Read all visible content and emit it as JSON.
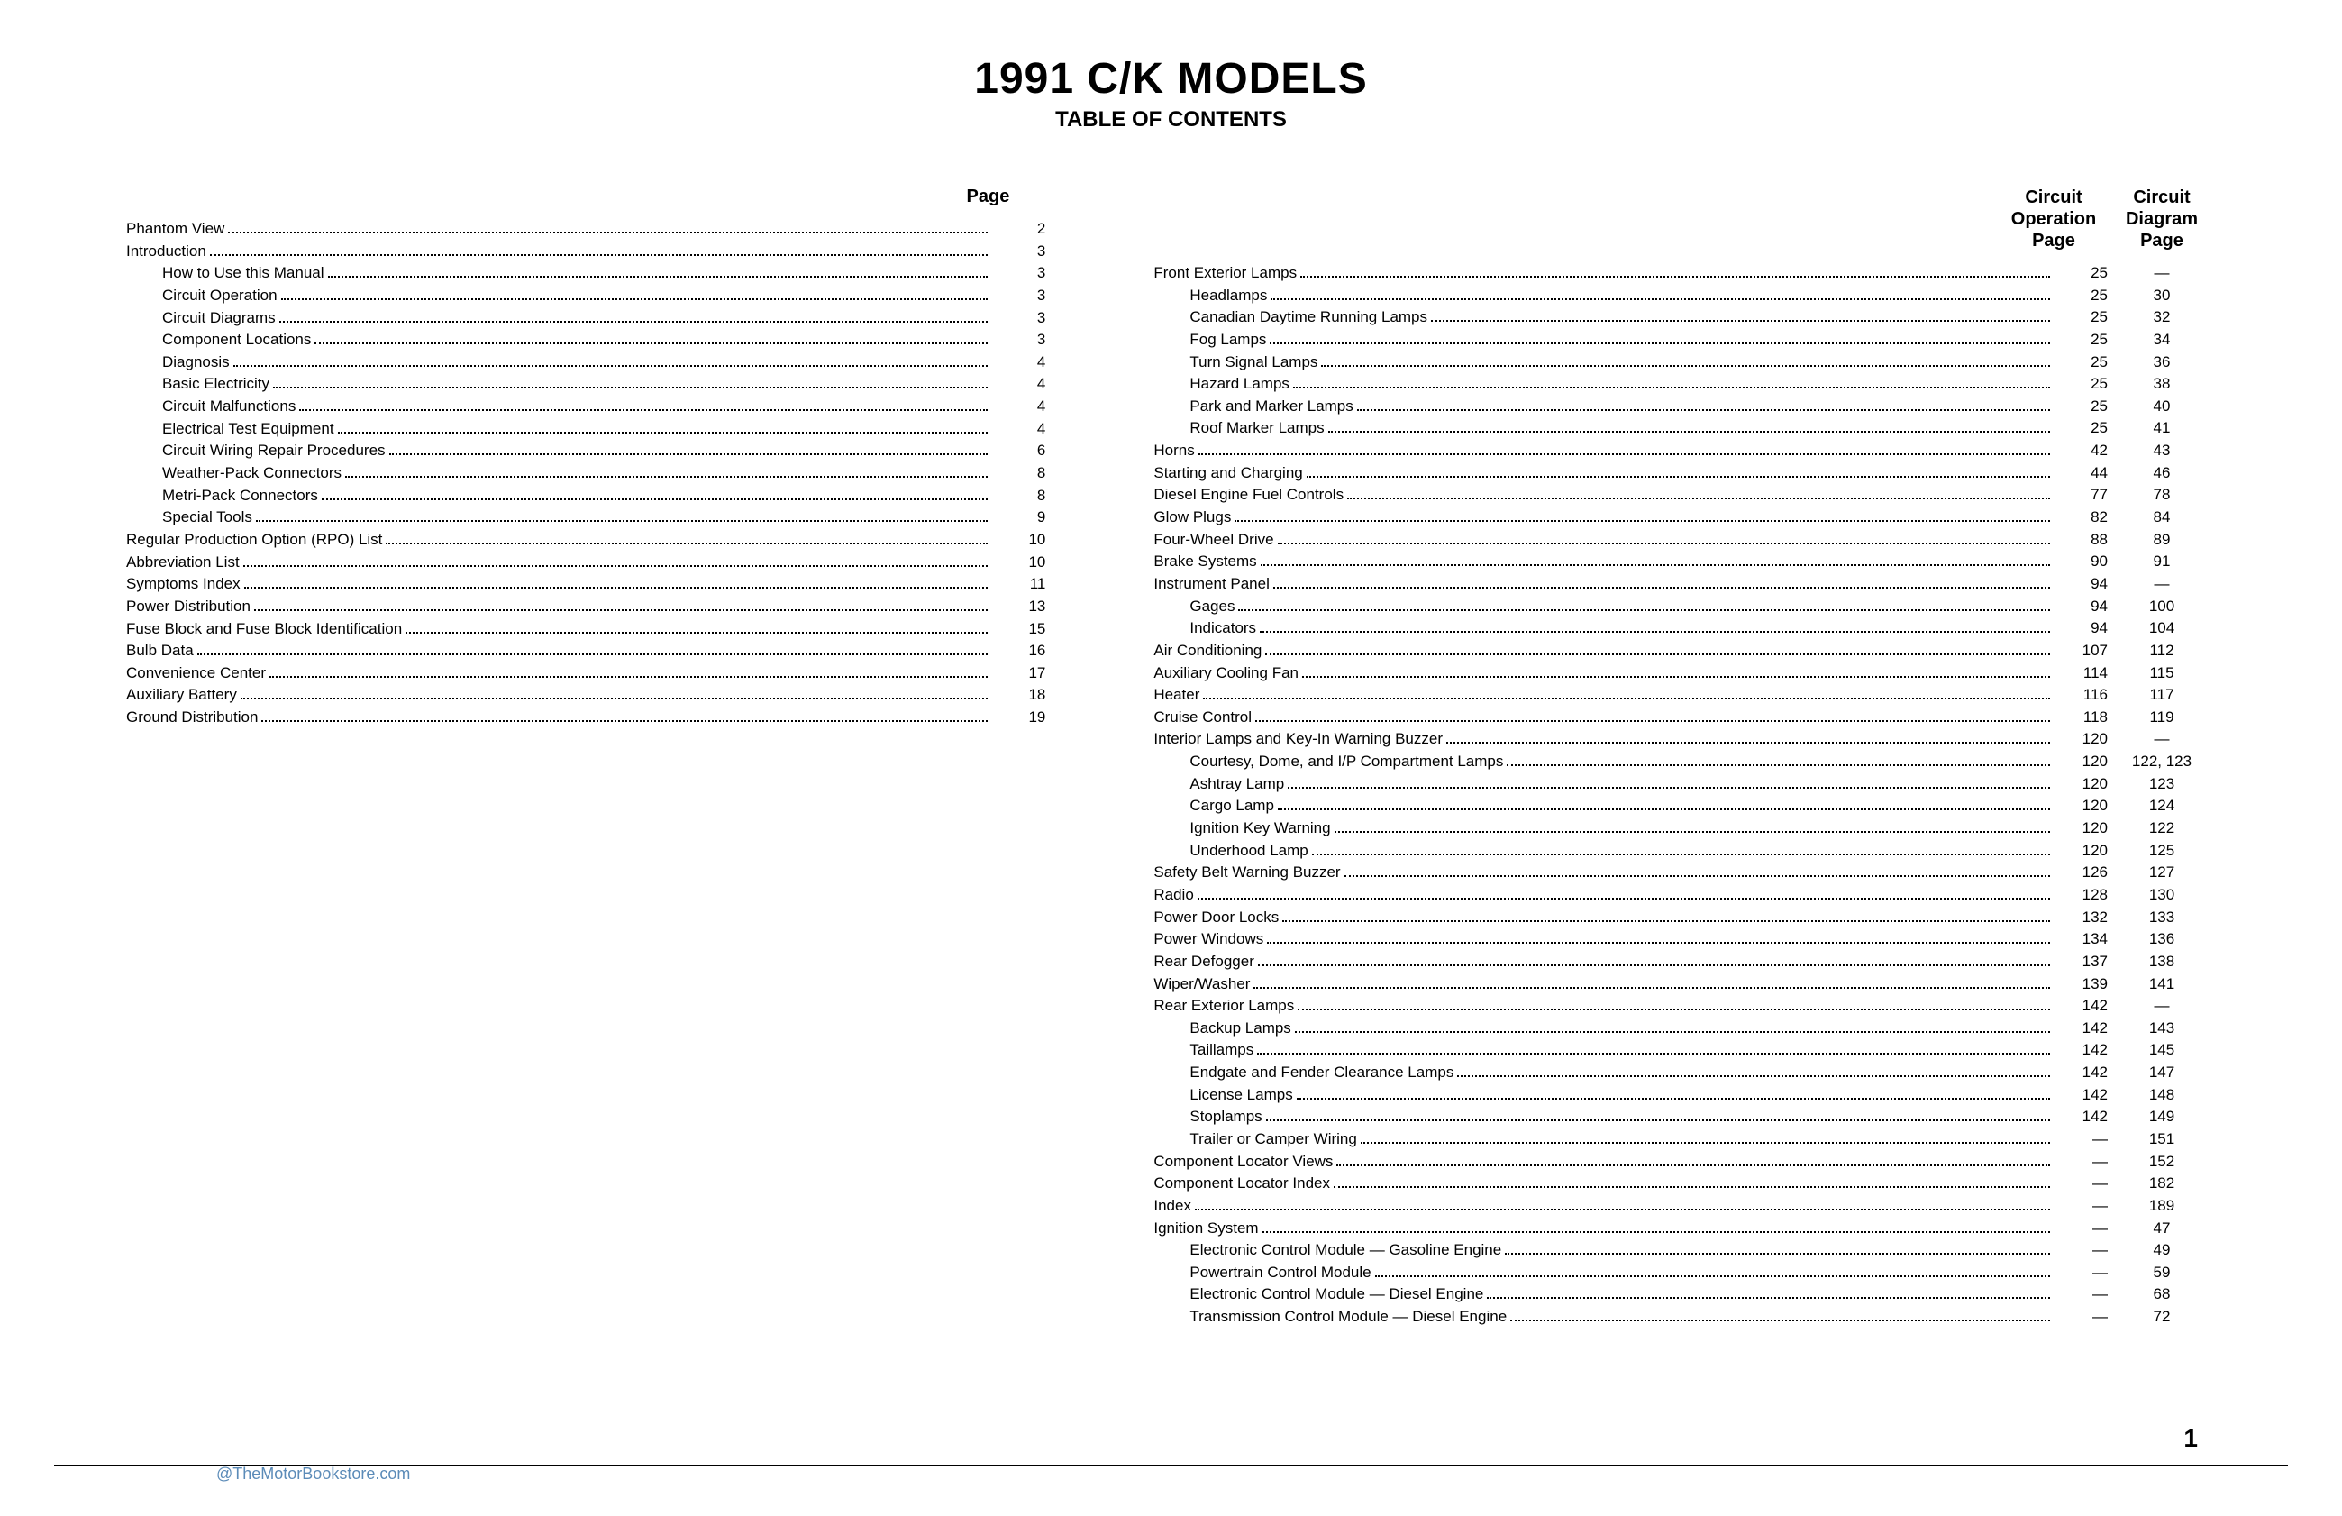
{
  "title": "1991 C/K MODELS",
  "subtitle": "TABLE OF CONTENTS",
  "leftHeader": "Page",
  "rightHeader1a": "Circuit",
  "rightHeader1b": "Operation",
  "rightHeader1c": "Page",
  "rightHeader2a": "Circuit",
  "rightHeader2b": "Diagram",
  "rightHeader2c": "Page",
  "footerPage": "1",
  "watermark": "@TheMotorBookstore.com",
  "leftItems": [
    {
      "label": "Phantom View",
      "page": "2",
      "indent": 0
    },
    {
      "label": "Introduction",
      "page": "3",
      "indent": 0
    },
    {
      "label": "How to Use this Manual",
      "page": "3",
      "indent": 1
    },
    {
      "label": "Circuit Operation",
      "page": "3",
      "indent": 1
    },
    {
      "label": "Circuit Diagrams",
      "page": "3",
      "indent": 1
    },
    {
      "label": "Component Locations",
      "page": "3",
      "indent": 1
    },
    {
      "label": "Diagnosis",
      "page": "4",
      "indent": 1
    },
    {
      "label": "Basic Electricity",
      "page": "4",
      "indent": 1
    },
    {
      "label": "Circuit Malfunctions",
      "page": "4",
      "indent": 1
    },
    {
      "label": "Electrical Test Equipment",
      "page": "4",
      "indent": 1
    },
    {
      "label": "Circuit Wiring Repair Procedures",
      "page": "6",
      "indent": 1
    },
    {
      "label": "Weather-Pack Connectors",
      "page": "8",
      "indent": 1
    },
    {
      "label": "Metri-Pack Connectors",
      "page": "8",
      "indent": 1
    },
    {
      "label": "Special Tools",
      "page": "9",
      "indent": 1
    },
    {
      "label": "Regular Production Option (RPO) List",
      "page": "10",
      "indent": 0
    },
    {
      "label": "Abbreviation List",
      "page": "10",
      "indent": 0
    },
    {
      "label": "Symptoms Index",
      "page": "11",
      "indent": 0
    },
    {
      "label": "Power Distribution",
      "page": "13",
      "indent": 0
    },
    {
      "label": "Fuse Block and Fuse Block Identification",
      "page": "15",
      "indent": 0
    },
    {
      "label": "Bulb Data",
      "page": "16",
      "indent": 0
    },
    {
      "label": "Convenience Center",
      "page": "17",
      "indent": 0
    },
    {
      "label": "Auxiliary Battery",
      "page": "18",
      "indent": 0
    },
    {
      "label": "Ground Distribution",
      "page": "19",
      "indent": 0
    }
  ],
  "rightItems": [
    {
      "label": "Front Exterior Lamps",
      "p1": "25",
      "p2": "—",
      "indent": 0
    },
    {
      "label": "Headlamps",
      "p1": "25",
      "p2": "30",
      "indent": 1
    },
    {
      "label": "Canadian Daytime Running Lamps",
      "p1": "25",
      "p2": "32",
      "indent": 1
    },
    {
      "label": "Fog Lamps",
      "p1": "25",
      "p2": "34",
      "indent": 1
    },
    {
      "label": "Turn Signal Lamps",
      "p1": "25",
      "p2": "36",
      "indent": 1
    },
    {
      "label": "Hazard Lamps",
      "p1": "25",
      "p2": "38",
      "indent": 1
    },
    {
      "label": "Park and Marker Lamps",
      "p1": "25",
      "p2": "40",
      "indent": 1
    },
    {
      "label": "Roof Marker Lamps",
      "p1": "25",
      "p2": "41",
      "indent": 1
    },
    {
      "label": "Horns",
      "p1": "42",
      "p2": "43",
      "indent": 0
    },
    {
      "label": "Starting and Charging",
      "p1": "44",
      "p2": "46",
      "indent": 0
    },
    {
      "label": "Diesel Engine Fuel Controls",
      "p1": "77",
      "p2": "78",
      "indent": 0
    },
    {
      "label": "Glow Plugs",
      "p1": "82",
      "p2": "84",
      "indent": 0
    },
    {
      "label": "Four-Wheel Drive",
      "p1": "88",
      "p2": "89",
      "indent": 0
    },
    {
      "label": "Brake Systems",
      "p1": "90",
      "p2": "91",
      "indent": 0
    },
    {
      "label": "Instrument Panel",
      "p1": "94",
      "p2": "—",
      "indent": 0
    },
    {
      "label": "Gages",
      "p1": "94",
      "p2": "100",
      "indent": 1
    },
    {
      "label": "Indicators",
      "p1": "94",
      "p2": "104",
      "indent": 1
    },
    {
      "label": "Air Conditioning",
      "p1": "107",
      "p2": "112",
      "indent": 0
    },
    {
      "label": "Auxiliary Cooling Fan",
      "p1": "114",
      "p2": "115",
      "indent": 0
    },
    {
      "label": "Heater",
      "p1": "116",
      "p2": "117",
      "indent": 0
    },
    {
      "label": "Cruise Control",
      "p1": "118",
      "p2": "119",
      "indent": 0
    },
    {
      "label": "Interior Lamps and Key-In Warning Buzzer",
      "p1": "120",
      "p2": "—",
      "indent": 0
    },
    {
      "label": "Courtesy, Dome, and I/P Compartment Lamps",
      "p1": "120",
      "p2": "122, 123",
      "indent": 1
    },
    {
      "label": "Ashtray Lamp",
      "p1": "120",
      "p2": "123",
      "indent": 1
    },
    {
      "label": "Cargo Lamp",
      "p1": "120",
      "p2": "124",
      "indent": 1
    },
    {
      "label": "Ignition Key Warning",
      "p1": "120",
      "p2": "122",
      "indent": 1
    },
    {
      "label": "Underhood Lamp",
      "p1": "120",
      "p2": "125",
      "indent": 1
    },
    {
      "label": "Safety Belt Warning Buzzer",
      "p1": "126",
      "p2": "127",
      "indent": 0
    },
    {
      "label": "Radio",
      "p1": "128",
      "p2": "130",
      "indent": 0
    },
    {
      "label": "Power Door Locks",
      "p1": "132",
      "p2": "133",
      "indent": 0
    },
    {
      "label": "Power Windows",
      "p1": "134",
      "p2": "136",
      "indent": 0
    },
    {
      "label": "Rear Defogger",
      "p1": "137",
      "p2": "138",
      "indent": 0
    },
    {
      "label": "Wiper/Washer",
      "p1": "139",
      "p2": "141",
      "indent": 0
    },
    {
      "label": "Rear Exterior Lamps",
      "p1": "142",
      "p2": "—",
      "indent": 0
    },
    {
      "label": "Backup Lamps",
      "p1": "142",
      "p2": "143",
      "indent": 1
    },
    {
      "label": "Taillamps",
      "p1": "142",
      "p2": "145",
      "indent": 1
    },
    {
      "label": "Endgate and Fender Clearance Lamps",
      "p1": "142",
      "p2": "147",
      "indent": 1
    },
    {
      "label": "License Lamps",
      "p1": "142",
      "p2": "148",
      "indent": 1
    },
    {
      "label": "Stoplamps",
      "p1": "142",
      "p2": "149",
      "indent": 1
    },
    {
      "label": "Trailer or Camper Wiring",
      "p1": "—",
      "p2": "151",
      "indent": 1
    },
    {
      "label": "Component Locator Views",
      "p1": "—",
      "p2": "152",
      "indent": 0
    },
    {
      "label": "Component Locator Index",
      "p1": "—",
      "p2": "182",
      "indent": 0
    },
    {
      "label": "Index",
      "p1": "—",
      "p2": "189",
      "indent": 0
    },
    {
      "label": "Ignition System",
      "p1": "—",
      "p2": "47",
      "indent": 0
    },
    {
      "label": "Electronic Control Module — Gasoline Engine",
      "p1": "—",
      "p2": "49",
      "indent": 1
    },
    {
      "label": "Powertrain Control Module",
      "p1": "—",
      "p2": "59",
      "indent": 1
    },
    {
      "label": "Electronic Control Module — Diesel Engine",
      "p1": "—",
      "p2": "68",
      "indent": 1
    },
    {
      "label": "Transmission Control Module — Diesel Engine",
      "p1": "—",
      "p2": "72",
      "indent": 1
    }
  ]
}
